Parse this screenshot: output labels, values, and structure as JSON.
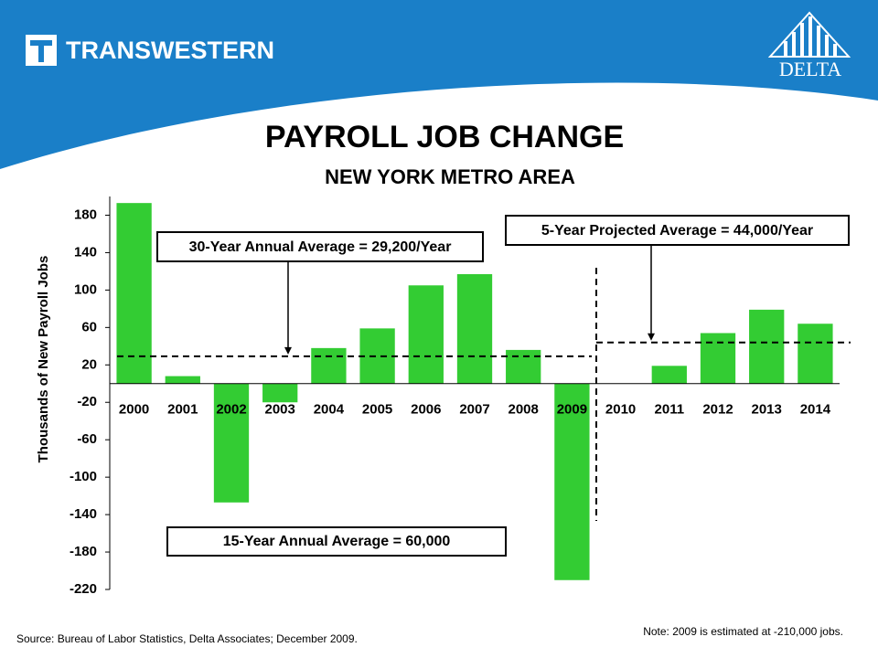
{
  "header": {
    "brand": "TRANSWESTERN",
    "partner": "DELTA"
  },
  "chart_data": {
    "type": "bar",
    "title": "PAYROLL JOB CHANGE",
    "subtitle": "NEW YORK METRO AREA",
    "y_label": "Thousands of New Payroll Jobs",
    "categories": [
      "2000",
      "2001",
      "2002",
      "2003",
      "2004",
      "2005",
      "2006",
      "2007",
      "2008",
      "2009",
      "2010",
      "2011",
      "2012",
      "2013",
      "2014"
    ],
    "values": [
      193,
      8,
      -127,
      -20,
      38,
      59,
      105,
      117,
      36,
      -210,
      0,
      19,
      54,
      79,
      64
    ],
    "color": "#33cc33",
    "ylim": [
      -220,
      200
    ],
    "yticks": [
      -220,
      -180,
      -140,
      -100,
      -60,
      -20,
      20,
      60,
      100,
      140,
      180
    ],
    "reference_lines": [
      {
        "label": "30-Year Annual Average = 29,200/Year",
        "value": 29.2
      },
      {
        "label": "5-Year Projected Average = 44,000/Year",
        "value": 44
      }
    ],
    "annotation": "15-Year Annual Average = 60,000",
    "source": "Source: Bureau  of Labor Statistics, Delta Associates; December 2009.",
    "note": "Note: 2009 is estimated at -210,000 jobs."
  }
}
